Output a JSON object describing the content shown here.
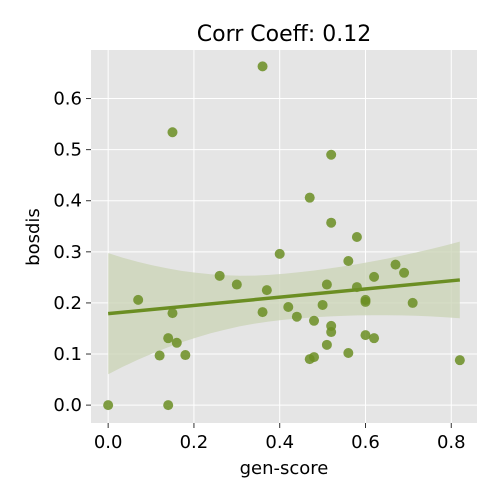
{
  "colors": {
    "panel_bg": "#e5e5e5",
    "grid": "#ffffff",
    "points": "#6b8e23",
    "band": "#c9d3b4"
  },
  "chart_data": {
    "type": "scatter",
    "title": "Corr Coeff: 0.12",
    "xlabel": "gen-score",
    "ylabel": "bosdis",
    "xlim": [
      -0.04,
      0.86
    ],
    "ylim": [
      -0.035,
      0.695
    ],
    "x_ticks": [
      0.0,
      0.2,
      0.4,
      0.6,
      0.8
    ],
    "x_tick_labels": [
      "0.0",
      "0.2",
      "0.4",
      "0.6",
      "0.8"
    ],
    "y_ticks": [
      0.0,
      0.1,
      0.2,
      0.3,
      0.4,
      0.5,
      0.6
    ],
    "y_tick_labels": [
      "0.0",
      "0.1",
      "0.2",
      "0.3",
      "0.4",
      "0.5",
      "0.6"
    ],
    "grid": true,
    "points": [
      [
        0.0,
        0.0
      ],
      [
        0.07,
        0.206
      ],
      [
        0.12,
        0.097
      ],
      [
        0.14,
        0.131
      ],
      [
        0.14,
        0.0
      ],
      [
        0.15,
        0.534
      ],
      [
        0.15,
        0.18
      ],
      [
        0.16,
        0.122
      ],
      [
        0.18,
        0.098
      ],
      [
        0.26,
        0.253
      ],
      [
        0.3,
        0.236
      ],
      [
        0.36,
        0.663
      ],
      [
        0.36,
        0.182
      ],
      [
        0.37,
        0.225
      ],
      [
        0.4,
        0.296
      ],
      [
        0.42,
        0.192
      ],
      [
        0.44,
        0.173
      ],
      [
        0.47,
        0.406
      ],
      [
        0.47,
        0.09
      ],
      [
        0.48,
        0.165
      ],
      [
        0.48,
        0.094
      ],
      [
        0.5,
        0.196
      ],
      [
        0.51,
        0.236
      ],
      [
        0.51,
        0.118
      ],
      [
        0.52,
        0.49
      ],
      [
        0.52,
        0.357
      ],
      [
        0.52,
        0.155
      ],
      [
        0.52,
        0.143
      ],
      [
        0.56,
        0.282
      ],
      [
        0.56,
        0.102
      ],
      [
        0.58,
        0.329
      ],
      [
        0.58,
        0.231
      ],
      [
        0.6,
        0.206
      ],
      [
        0.6,
        0.202
      ],
      [
        0.6,
        0.137
      ],
      [
        0.62,
        0.251
      ],
      [
        0.62,
        0.131
      ],
      [
        0.67,
        0.275
      ],
      [
        0.69,
        0.259
      ],
      [
        0.71,
        0.2
      ],
      [
        0.82,
        0.088
      ]
    ],
    "regression": {
      "x": [
        0.0,
        0.82
      ],
      "y": [
        0.179,
        0.245
      ],
      "ci_lower": [
        0.088,
        0.17
      ],
      "ci_upper": [
        0.325,
        0.32
      ]
    }
  }
}
